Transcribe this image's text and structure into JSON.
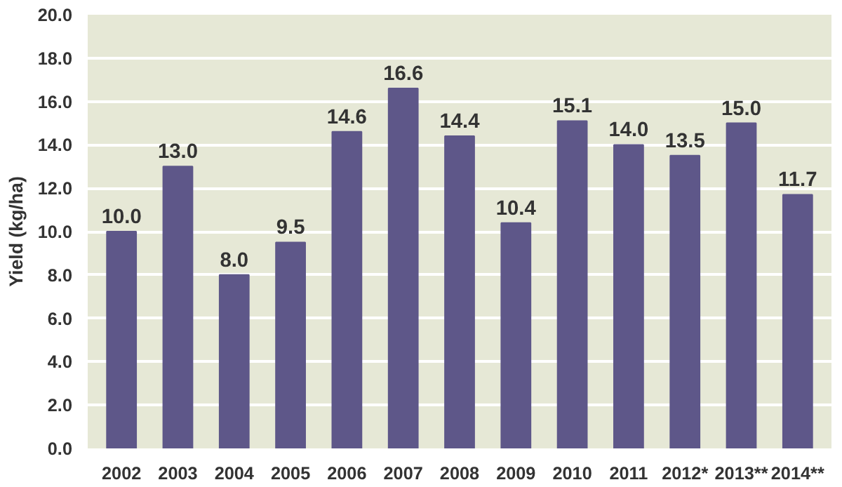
{
  "chart_data": {
    "type": "bar",
    "ylabel": "Yield (kg/ha)",
    "categories": [
      "2002",
      "2003",
      "2004",
      "2005",
      "2006",
      "2007",
      "2008",
      "2009",
      "2010",
      "2011",
      "2012*",
      "2013**",
      "2014**"
    ],
    "values": [
      10.0,
      13.0,
      8.0,
      9.5,
      14.6,
      16.6,
      14.4,
      10.4,
      15.1,
      14.0,
      13.5,
      15.0,
      11.7
    ],
    "value_labels": [
      "10.0",
      "13.0",
      "8.0",
      "9.5",
      "14.6",
      "16.6",
      "14.4",
      "10.4",
      "15.1",
      "14.0",
      "13.5",
      "15.0",
      "11.7"
    ],
    "color": "#5e5789",
    "ylim": [
      0,
      20
    ],
    "yticks": [
      {
        "value": 0,
        "label": "0.0"
      },
      {
        "value": 2,
        "label": "2.0"
      },
      {
        "value": 4,
        "label": "4.0"
      },
      {
        "value": 6,
        "label": "6.0"
      },
      {
        "value": 8,
        "label": "8.0"
      },
      {
        "value": 10,
        "label": "10.0"
      },
      {
        "value": 12,
        "label": "12.0"
      },
      {
        "value": 14,
        "label": "14.0"
      },
      {
        "value": 16,
        "label": "16.0"
      },
      {
        "value": 18,
        "label": "18.0"
      },
      {
        "value": 20,
        "label": "20.0"
      }
    ],
    "grid": "y"
  }
}
